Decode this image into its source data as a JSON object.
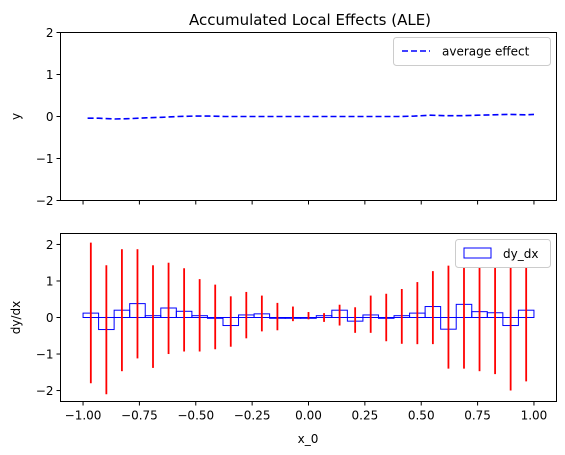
{
  "chart_data": [
    {
      "type": "line",
      "title": "Accumulated Local Effects (ALE)",
      "xlabel": "",
      "ylabel": "y",
      "xlim": [
        -1.1,
        1.1
      ],
      "ylim": [
        -2,
        2
      ],
      "xticks": [
        -1.0,
        -0.75,
        -0.5,
        -0.25,
        0.0,
        0.25,
        0.5,
        0.75,
        1.0
      ],
      "yticks": [
        -2,
        -1,
        0,
        1,
        2
      ],
      "ytick_labels": [
        "−2",
        "−1",
        "0",
        "1",
        "2"
      ],
      "legend_position": "top-right",
      "series": [
        {
          "name": "average effect",
          "color": "#0000ff",
          "linestyle": "dashed",
          "x": [
            -0.98,
            -0.93,
            -0.86,
            -0.79,
            -0.72,
            -0.65,
            -0.58,
            -0.51,
            -0.44,
            -0.37,
            -0.3,
            -0.23,
            -0.16,
            -0.09,
            -0.02,
            0.05,
            0.12,
            0.19,
            0.26,
            0.33,
            0.4,
            0.47,
            0.54,
            0.61,
            0.68,
            0.75,
            0.82,
            0.89,
            0.96,
            1.0
          ],
          "y": [
            -0.04,
            -0.04,
            -0.06,
            -0.05,
            -0.03,
            -0.02,
            0.0,
            0.01,
            0.01,
            0.0,
            0.0,
            0.0,
            0.0,
            0.0,
            0.0,
            0.0,
            0.0,
            0.0,
            0.0,
            0.0,
            0.0,
            0.01,
            0.03,
            0.02,
            0.02,
            0.03,
            0.04,
            0.05,
            0.04,
            0.05
          ]
        }
      ]
    },
    {
      "type": "bar",
      "title": "",
      "xlabel": "x_0",
      "ylabel": "dy/dx",
      "xlim": [
        -1.1,
        1.1
      ],
      "ylim": [
        -2.3,
        2.3
      ],
      "xticks": [
        -1.0,
        -0.75,
        -0.5,
        -0.25,
        0.0,
        0.25,
        0.5,
        0.75,
        1.0
      ],
      "xtick_labels": [
        "−1.00",
        "−0.75",
        "−0.50",
        "−0.25",
        "0.00",
        "0.25",
        "0.50",
        "0.75",
        "1.00"
      ],
      "yticks": [
        -2,
        -1,
        0,
        1,
        2
      ],
      "ytick_labels": [
        "−2",
        "−1",
        "0",
        "1",
        "2"
      ],
      "legend_position": "top-right",
      "bar_edge_color": "#0000ff",
      "error_color": "#ff0000",
      "series": [
        {
          "name": "dy_dx",
          "bin_centers": [
            -0.9655,
            -0.8966,
            -0.8276,
            -0.7586,
            -0.6897,
            -0.6207,
            -0.5517,
            -0.4828,
            -0.4138,
            -0.3448,
            -0.2759,
            -0.2069,
            -0.1379,
            -0.069,
            0.0,
            0.069,
            0.1379,
            0.2069,
            0.2759,
            0.3448,
            0.4138,
            0.4828,
            0.5517,
            0.6207,
            0.6897,
            0.7586,
            0.8276,
            0.8966,
            0.9655
          ],
          "values": [
            0.12,
            -0.33,
            0.2,
            0.38,
            0.05,
            0.26,
            0.17,
            0.05,
            0.0,
            -0.22,
            0.07,
            0.1,
            0.0,
            0.0,
            0.0,
            0.05,
            0.2,
            -0.1,
            0.07,
            0.0,
            0.05,
            0.12,
            0.3,
            -0.32,
            0.36,
            0.16,
            0.13,
            -0.22,
            0.2
          ],
          "err_low": [
            -1.8,
            -2.1,
            -1.47,
            -1.12,
            -1.38,
            -1.0,
            -0.93,
            -0.93,
            -0.87,
            -0.8,
            -0.57,
            -0.38,
            -0.35,
            -0.1,
            -0.05,
            -0.12,
            -0.22,
            -0.42,
            -0.42,
            -0.65,
            -0.72,
            -0.73,
            -0.73,
            -1.4,
            -1.4,
            -1.47,
            -1.55,
            -2.0,
            -1.75
          ],
          "err_high": [
            2.05,
            1.43,
            1.87,
            1.87,
            1.43,
            1.5,
            1.35,
            1.05,
            0.9,
            0.58,
            0.7,
            0.6,
            0.4,
            0.3,
            0.15,
            0.12,
            0.35,
            0.28,
            0.6,
            0.65,
            0.78,
            0.97,
            1.27,
            1.42,
            1.57,
            1.7,
            1.92,
            1.92,
            2.08
          ]
        }
      ]
    }
  ]
}
